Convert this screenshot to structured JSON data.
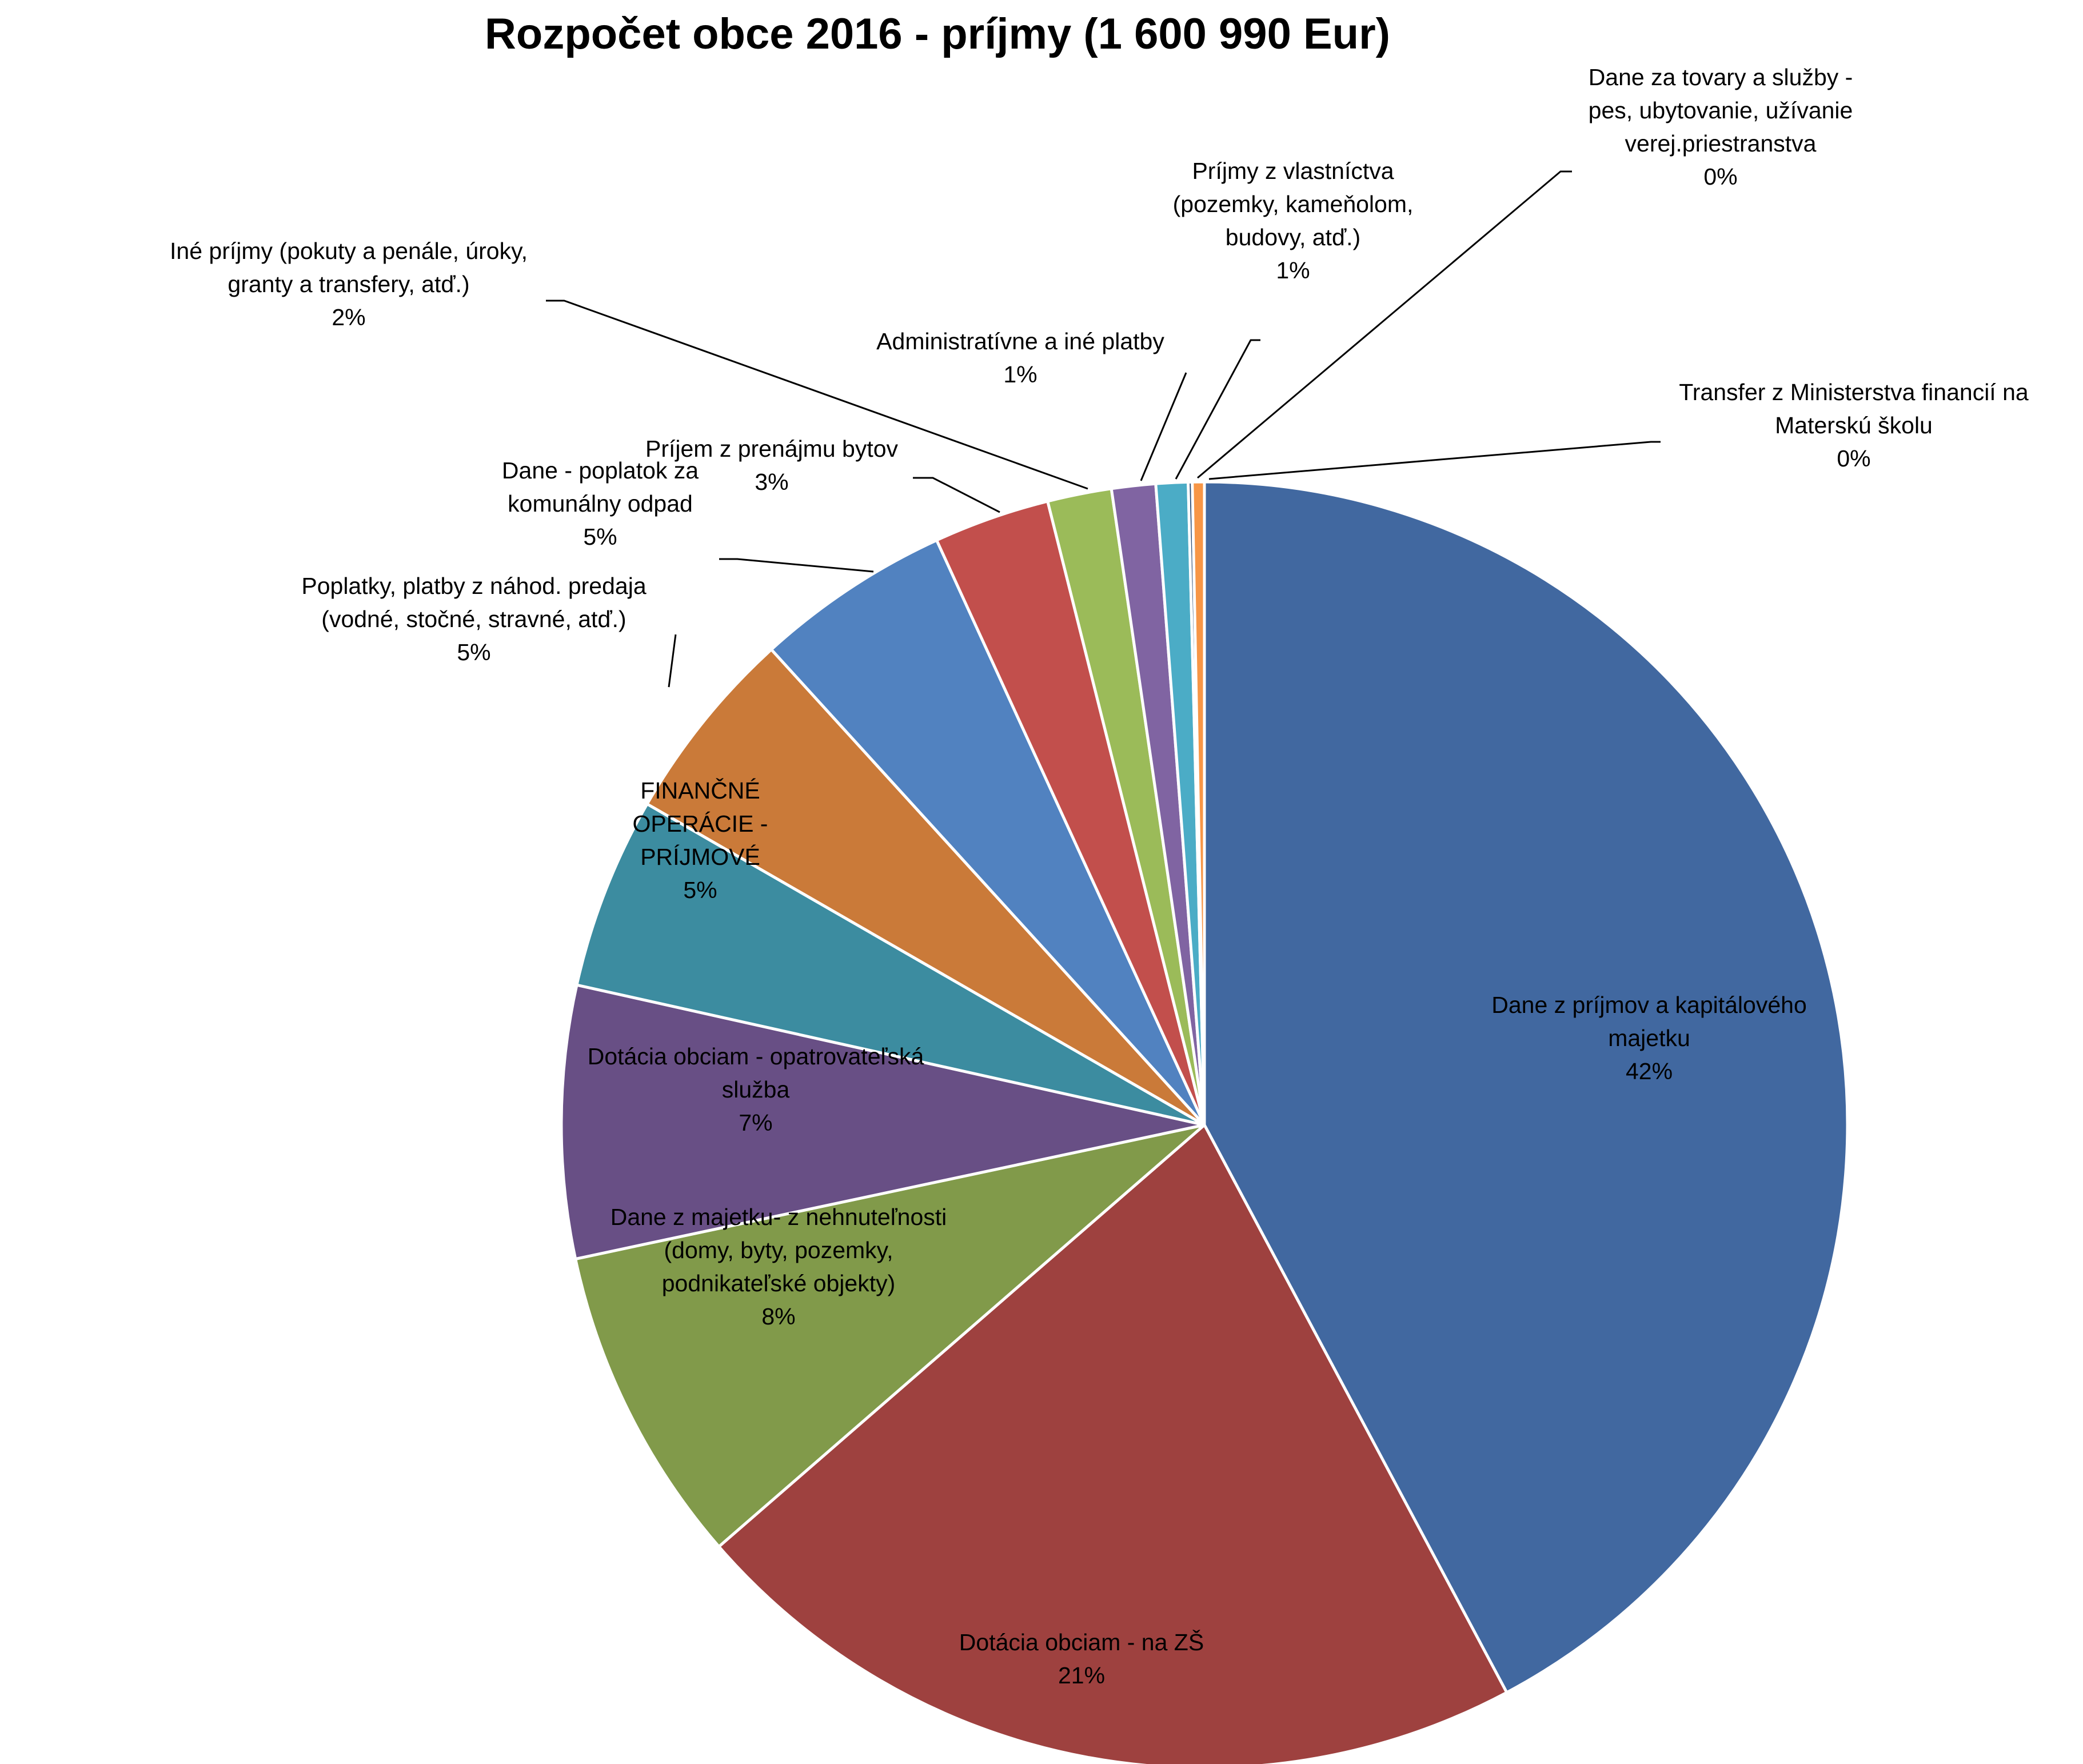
{
  "chart_data": {
    "type": "pie",
    "title": "Rozpočet obce 2016 - príjmy (1 600 990 Eur)",
    "legend": "none",
    "slices": [
      {
        "label": [
          "Dane z príjmov  a kapitálového",
          "majetku",
          "42%"
        ],
        "pct_text": "42%",
        "value": 42.0,
        "color": "#4168A0"
      },
      {
        "label": [
          "Dotácia obciam - na ZŠ",
          "21%"
        ],
        "pct_text": "21%",
        "value": 21.3,
        "color": "#9E413F"
      },
      {
        "label": [
          "Dane z majetku- z nehnuteľnosti",
          "(domy, byty, pozemky,",
          "podnikateľské objekty)",
          "8%"
        ],
        "pct_text": "8%",
        "value": 8.0,
        "color": "#819A4A"
      },
      {
        "label": [
          "Dotácia obciam - opatrovateľská",
          "služba",
          "7%"
        ],
        "pct_text": "7%",
        "value": 6.8,
        "color": "#684F85"
      },
      {
        "label": [
          "FINANČNÉ",
          "OPERÁCIE -",
          "PRÍJMOVÉ",
          "5%"
        ],
        "pct_text": "5%",
        "value": 4.8,
        "color": "#3C8CA0"
      },
      {
        "label": [
          "Poplatky, platby z náhod. predaja",
          "(vodné, stočné, stravné, atď.)",
          "5%"
        ],
        "pct_text": "5%",
        "value": 4.9,
        "color": "#CA7A39"
      },
      {
        "label": [
          "Dane - poplatok za",
          "komunálny odpad",
          "5%"
        ],
        "pct_text": "5%",
        "value": 4.9,
        "color": "#5182C0"
      },
      {
        "label": [
          "Príjem z prenájmu bytov",
          "3%"
        ],
        "pct_text": "3%",
        "value": 2.9,
        "color": "#C24F4C"
      },
      {
        "label": [
          "Iné príjmy (pokuty a penále, úroky,",
          "granty a transfery, atď.)",
          "2%"
        ],
        "pct_text": "2%",
        "value": 1.6,
        "color": "#9BBB59"
      },
      {
        "label": [
          "Administratívne a iné platby",
          "1%"
        ],
        "pct_text": "1%",
        "value": 1.1,
        "color": "#8064A2"
      },
      {
        "label": [
          "Príjmy z vlastníctva",
          "(pozemky, kameňolom,",
          "budovy, atď.)",
          "1%"
        ],
        "pct_text": "1%",
        "value": 0.8,
        "color": "#4BACC6"
      },
      {
        "label": [
          "Dane za tovary a služby -",
          "pes, ubytovanie, užívanie",
          "verej.priestranstva",
          "0%"
        ],
        "pct_text": "0%",
        "value": 0.1,
        "color": "#2C4D75"
      },
      {
        "label": [
          "Transfer z Ministerstva financií na",
          "Materskú školu",
          "0%"
        ],
        "pct_text": "0%",
        "value": 0.3,
        "color": "#F79646"
      }
    ]
  }
}
